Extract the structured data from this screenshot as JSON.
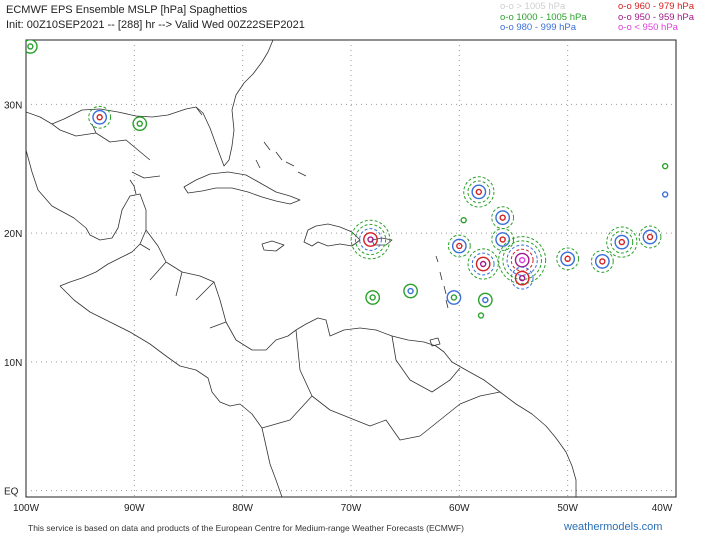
{
  "title_line1": "ECMWF EPS Ensemble MSLP [hPa] Spaghettios",
  "title_line2": "Init: 00Z10SEP2021 -- [288] hr --> Valid Wed 00Z22SEP2021",
  "legend": [
    {
      "label": "o-o > 1005 hPa",
      "color": "#cfcfcf"
    },
    {
      "label": "o-o 1000 - 1005 hPa",
      "color": "#2aa12a"
    },
    {
      "label": "o-o 980 - 999 hPa",
      "color": "#3a6fd8"
    },
    {
      "label": "o-o 960 - 979 hPa",
      "color": "#d42020"
    },
    {
      "label": "o-o 950 - 959 hPa",
      "color": "#a01a8a"
    },
    {
      "label": "o-o < 950 hPa",
      "color": "#e040e0"
    }
  ],
  "lat_labels": [
    "30N",
    "20N",
    "10N",
    "EQ"
  ],
  "lon_labels": [
    "100W",
    "90W",
    "80W",
    "70W",
    "60W",
    "50W",
    "40W"
  ],
  "footer": "This service is based on data and products of the European Centre for Medium-range Weather Forecasts (ECMWF)",
  "site": "weathermodels.com",
  "chart_data": {
    "type": "map",
    "lon_range": [
      -100,
      -40
    ],
    "lat_range": [
      -0.5,
      35
    ],
    "members": [
      {
        "lon": -68.2,
        "lat": 19.5,
        "ring_colors": [
          "#2aa12a",
          "#2aa12a",
          "#3a6fd8",
          "#d42020",
          "#a01a8a"
        ]
      },
      {
        "lon": -60.0,
        "lat": 19.0,
        "ring_colors": [
          "#2aa12a",
          "#3a6fd8",
          "#d42020"
        ]
      },
      {
        "lon": -58.2,
        "lat": 23.2,
        "ring_colors": [
          "#2aa12a",
          "#2aa12a",
          "#3a6fd8",
          "#d42020"
        ]
      },
      {
        "lon": -57.8,
        "lat": 17.6,
        "ring_colors": [
          "#2aa12a",
          "#3a6fd8",
          "#d42020",
          "#a01a8a"
        ]
      },
      {
        "lon": -56.0,
        "lat": 21.2,
        "ring_colors": [
          "#2aa12a",
          "#3a6fd8",
          "#d42020"
        ]
      },
      {
        "lon": -56.0,
        "lat": 19.5,
        "ring_colors": [
          "#2aa12a",
          "#3a6fd8",
          "#d42020"
        ]
      },
      {
        "lon": -54.2,
        "lat": 17.9,
        "ring_colors": [
          "#2aa12a",
          "#2aa12a",
          "#3a6fd8",
          "#d42020",
          "#a01a8a",
          "#e040e0"
        ]
      },
      {
        "lon": -54.2,
        "lat": 16.5,
        "ring_colors": [
          "#3a6fd8",
          "#d42020",
          "#a01a8a"
        ]
      },
      {
        "lon": -50.0,
        "lat": 18.0,
        "ring_colors": [
          "#2aa12a",
          "#3a6fd8",
          "#d42020"
        ]
      },
      {
        "lon": -46.8,
        "lat": 17.8,
        "ring_colors": [
          "#2aa12a",
          "#3a6fd8",
          "#d42020"
        ]
      },
      {
        "lon": -45.0,
        "lat": 19.3,
        "ring_colors": [
          "#2aa12a",
          "#2aa12a",
          "#3a6fd8",
          "#d42020"
        ]
      },
      {
        "lon": -42.4,
        "lat": 19.7,
        "ring_colors": [
          "#2aa12a",
          "#3a6fd8",
          "#d42020"
        ]
      },
      {
        "lon": -41.0,
        "lat": 23.0,
        "ring_colors": [
          "#3a6fd8"
        ]
      },
      {
        "lon": -41.0,
        "lat": 25.2,
        "ring_colors": [
          "#2aa12a"
        ]
      },
      {
        "lon": -60.5,
        "lat": 15.0,
        "ring_colors": [
          "#3a6fd8",
          "#2aa12a"
        ]
      },
      {
        "lon": -57.6,
        "lat": 14.8,
        "ring_colors": [
          "#2aa12a",
          "#3a6fd8"
        ]
      },
      {
        "lon": -59.6,
        "lat": 21.0,
        "ring_colors": [
          "#2aa12a"
        ]
      },
      {
        "lon": -58.0,
        "lat": 13.6,
        "ring_colors": [
          "#2aa12a"
        ]
      },
      {
        "lon": -64.5,
        "lat": 15.5,
        "ring_colors": [
          "#2aa12a",
          "#3a6fd8"
        ]
      },
      {
        "lon": -68.0,
        "lat": 15.0,
        "ring_colors": [
          "#2aa12a",
          "#2aa12a"
        ]
      },
      {
        "lon": -93.2,
        "lat": 29.0,
        "ring_colors": [
          "#2aa12a",
          "#3a6fd8",
          "#d42020"
        ]
      },
      {
        "lon": -89.5,
        "lat": 28.5,
        "ring_colors": [
          "#2aa12a",
          "#2aa12a"
        ]
      },
      {
        "lon": -99.6,
        "lat": 34.5,
        "ring_colors": [
          "#2aa12a",
          "#2aa12a"
        ]
      }
    ]
  }
}
